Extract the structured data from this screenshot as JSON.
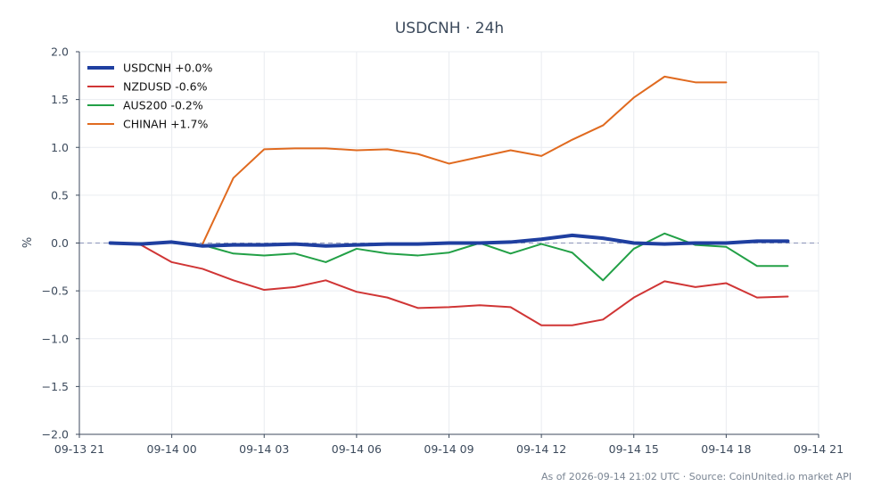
{
  "footer": "As of 2026-09-14 21:02 UTC · Source: CoinUnited.io market API",
  "colors": {
    "baseline": "#8a93b8",
    "grid": "#e9ecf0",
    "axis": "#3c4a5c"
  },
  "chart_data": {
    "type": "line",
    "title": "USDCNH · 24h",
    "xlabel": "",
    "ylabel": "%",
    "x_ticks": [
      "09-13 21",
      "09-14 00",
      "09-14 03",
      "09-14 06",
      "09-14 09",
      "09-14 12",
      "09-14 15",
      "09-14 18",
      "09-14 21"
    ],
    "y_ticks": [
      "2.0",
      "1.5",
      "1.0",
      "0.5",
      "0.0",
      "−0.5",
      "−1.0",
      "−1.5",
      "−2.0"
    ],
    "xlim": [
      "2026-09-13 21:00",
      "2026-09-14 21:00"
    ],
    "ylim": [
      -2.0,
      2.0
    ],
    "grid": true,
    "legend_position": "top-left",
    "reference_line": 0.0,
    "x": [
      "2026-09-13 22:00",
      "2026-09-13 23:00",
      "2026-09-14 00:00",
      "2026-09-14 01:00",
      "2026-09-14 02:00",
      "2026-09-14 03:00",
      "2026-09-14 04:00",
      "2026-09-14 05:00",
      "2026-09-14 06:00",
      "2026-09-14 07:00",
      "2026-09-14 08:00",
      "2026-09-14 09:00",
      "2026-09-14 10:00",
      "2026-09-14 11:00",
      "2026-09-14 12:00",
      "2026-09-14 13:00",
      "2026-09-14 14:00",
      "2026-09-14 15:00",
      "2026-09-14 16:00",
      "2026-09-14 17:00",
      "2026-09-14 18:00",
      "2026-09-14 19:00",
      "2026-09-14 20:00"
    ],
    "series": [
      {
        "name": "USDCNH +0.0%",
        "color": "#1f3fa0",
        "values": [
          0.0,
          -0.01,
          0.01,
          -0.03,
          -0.02,
          -0.02,
          -0.01,
          -0.03,
          -0.02,
          -0.01,
          -0.01,
          0.0,
          0.0,
          0.01,
          0.04,
          0.08,
          0.05,
          0.0,
          -0.01,
          0.0,
          0.0,
          0.02,
          0.02
        ]
      },
      {
        "name": "NZDUSD -0.6%",
        "color": "#d03535",
        "values": [
          0.0,
          -0.02,
          -0.2,
          -0.27,
          -0.39,
          -0.49,
          -0.46,
          -0.39,
          -0.51,
          -0.57,
          -0.68,
          -0.67,
          -0.65,
          -0.67,
          -0.86,
          -0.86,
          -0.8,
          -0.57,
          -0.4,
          -0.46,
          -0.42,
          -0.57,
          -0.56
        ]
      },
      {
        "name": "AUS200 -0.2%",
        "color": "#22a046",
        "values": [
          0.0,
          0.0,
          0.0,
          -0.02,
          -0.11,
          -0.13,
          -0.11,
          -0.2,
          -0.06,
          -0.11,
          -0.13,
          -0.1,
          0.0,
          -0.11,
          -0.01,
          -0.1,
          -0.39,
          -0.06,
          0.1,
          -0.02,
          -0.04,
          -0.24,
          -0.24
        ]
      },
      {
        "name": "CHINAH +1.7%",
        "color": "#e06a1f",
        "values": [
          null,
          null,
          null,
          -0.01,
          0.68,
          0.98,
          0.99,
          0.99,
          0.97,
          0.98,
          0.93,
          0.83,
          0.9,
          0.97,
          0.91,
          1.08,
          1.23,
          1.52,
          1.74,
          1.68,
          1.68,
          null,
          null
        ]
      }
    ]
  }
}
